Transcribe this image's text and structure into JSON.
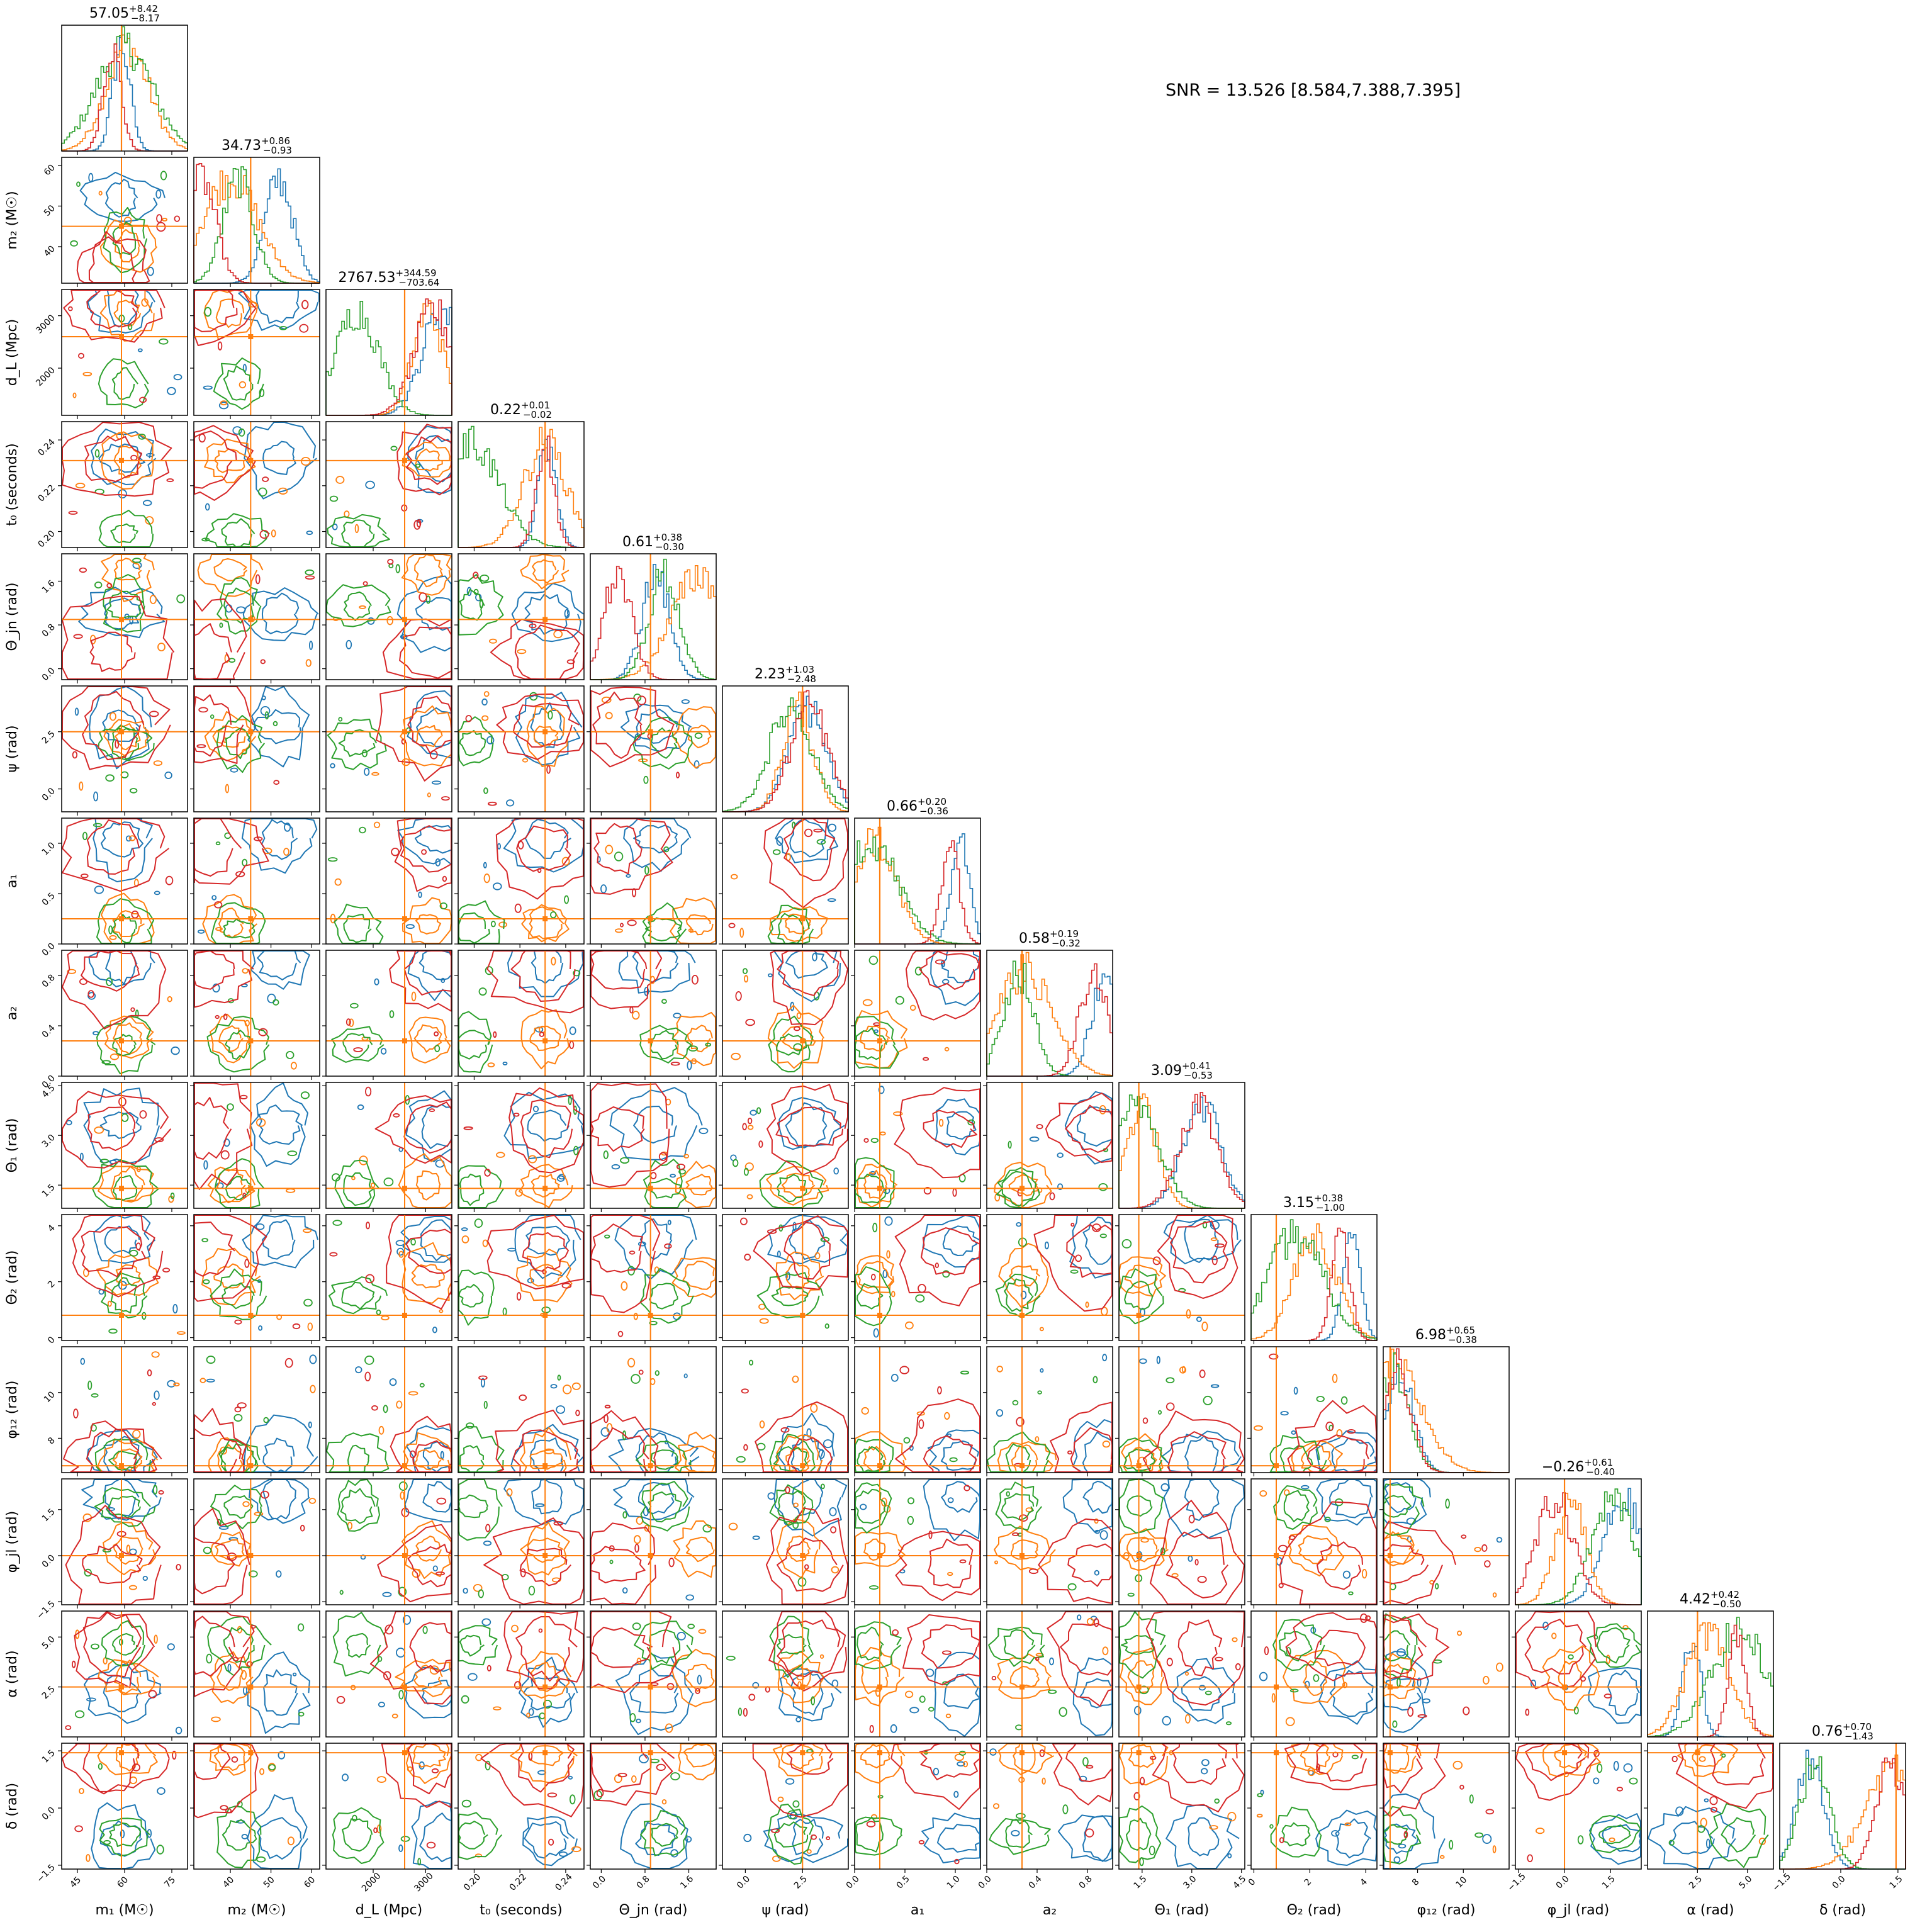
{
  "figure": {
    "snr_text": "SNR = 13.526 [8.584,7.388,7.395]"
  },
  "colors": {
    "blue": "#1f77b4",
    "orange": "#ff7f0e",
    "green": "#2ca02c",
    "red": "#d62728",
    "truth": "#ff7f0e"
  },
  "chart_data": {
    "type": "corner",
    "series_colors": [
      "#1f77b4",
      "#ff7f0e",
      "#2ca02c",
      "#d62728"
    ],
    "parameters": [
      {
        "label": "m₁ (M☉)",
        "title_main": "57.05",
        "title_plus": "+8.42",
        "title_minus": "−8.17",
        "range": [
          40,
          80
        ],
        "ticks": [
          45,
          60,
          75
        ],
        "tick_labels": [
          "45",
          "60",
          "75"
        ],
        "truth": 59
      },
      {
        "label": "m₂ (M☉)",
        "title_main": "34.73",
        "title_plus": "+0.86",
        "title_minus": "−0.93",
        "range": [
          31,
          62
        ],
        "ticks": [
          40,
          50,
          60
        ],
        "tick_labels": [
          "40",
          "50",
          "60"
        ],
        "truth": 45
      },
      {
        "label": "d_L (Mpc)",
        "title_main": "2767.53",
        "title_plus": "+344.59",
        "title_minus": "−703.64",
        "range": [
          1100,
          3500
        ],
        "ticks": [
          2000,
          3000
        ],
        "tick_labels": [
          "2000",
          "3000"
        ],
        "truth": 2600
      },
      {
        "label": "t₀ (seconds)",
        "title_main": "0.22",
        "title_plus": "+0.01",
        "title_minus": "−0.02",
        "range": [
          0.193,
          0.248
        ],
        "ticks": [
          0.2,
          0.22,
          0.24
        ],
        "tick_labels": [
          "0.20",
          "0.22",
          "0.24"
        ],
        "truth": 0.231
      },
      {
        "label": "Θ_jn (rad)",
        "title_main": "0.61",
        "title_plus": "+0.38",
        "title_minus": "−0.30",
        "range": [
          -0.2,
          2.1
        ],
        "ticks": [
          0.0,
          0.8,
          1.6
        ],
        "tick_labels": [
          "0.0",
          "0.8",
          "1.6"
        ],
        "truth": 0.9
      },
      {
        "label": "ψ (rad)",
        "title_main": "2.23",
        "title_plus": "+1.03",
        "title_minus": "−2.48",
        "range": [
          -1.0,
          4.5
        ],
        "ticks": [
          0.0,
          2.5
        ],
        "tick_labels": [
          "0.0",
          "2.5"
        ],
        "truth": 2.5
      },
      {
        "label": "a₁",
        "title_main": "0.66",
        "title_plus": "+0.20",
        "title_minus": "−0.36",
        "range": [
          0,
          1.25
        ],
        "ticks": [
          0.0,
          0.5,
          1.0
        ],
        "tick_labels": [
          "0.0",
          "0.5",
          "1.0"
        ],
        "truth": 0.25
      },
      {
        "label": "a₂",
        "title_main": "0.58",
        "title_plus": "+0.19",
        "title_minus": "−0.32",
        "range": [
          0,
          1.0
        ],
        "ticks": [
          0.0,
          0.4,
          0.8
        ],
        "tick_labels": [
          "0.0",
          "0.4",
          "0.8"
        ],
        "truth": 0.28
      },
      {
        "label": "Θ₁ (rad)",
        "title_main": "3.09",
        "title_plus": "+0.41",
        "title_minus": "−0.53",
        "range": [
          0.8,
          4.6
        ],
        "ticks": [
          1.5,
          3.0,
          4.5
        ],
        "tick_labels": [
          "1.5",
          "3.0",
          "4.5"
        ],
        "truth": 1.4
      },
      {
        "label": "Θ₂ (rad)",
        "title_main": "3.15",
        "title_plus": "+0.38",
        "title_minus": "−1.00",
        "range": [
          -0.1,
          4.4
        ],
        "ticks": [
          0,
          2,
          4
        ],
        "tick_labels": [
          "0",
          "2",
          "4"
        ],
        "truth": 0.8
      },
      {
        "label": "φ₁₂ (rad)",
        "title_main": "6.98",
        "title_plus": "+0.65",
        "title_minus": "−0.38",
        "range": [
          6.5,
          12
        ],
        "ticks": [
          8,
          10
        ],
        "tick_labels": [
          "8",
          "10"
        ],
        "truth": 6.8
      },
      {
        "label": "φ_jl (rad)",
        "title_main": "−0.26",
        "title_plus": "+0.61",
        "title_minus": "−0.40",
        "range": [
          -1.6,
          2.5
        ],
        "ticks": [
          -1.5,
          0.0,
          1.5
        ],
        "tick_labels": [
          "−1.5",
          "0.0",
          "1.5"
        ],
        "truth": 0.0
      },
      {
        "label": "α (rad)",
        "title_main": "4.42",
        "title_plus": "+0.42",
        "title_minus": "−0.50",
        "range": [
          0,
          6.3
        ],
        "ticks": [
          2.5,
          5.0
        ],
        "tick_labels": [
          "2.5",
          "5.0"
        ],
        "truth": 2.5
      },
      {
        "label": "δ (rad)",
        "title_main": "0.76",
        "title_plus": "+0.70",
        "title_minus": "−1.43",
        "range": [
          -1.6,
          1.7
        ],
        "ticks": [
          -1.5,
          0.0,
          1.5
        ],
        "tick_labels": [
          "−1.5",
          "0.0",
          "1.5"
        ],
        "truth": 1.45
      }
    ],
    "y_tick_labels_by_row": [
      null,
      [
        "40",
        "50",
        "60"
      ],
      [
        "2000",
        "3000"
      ],
      [
        "0.20",
        "0.22",
        "0.24"
      ],
      [
        "0.0",
        "0.8",
        "1.6"
      ],
      [
        "0.0",
        "2.5"
      ],
      [
        "0.0",
        "0.5",
        "1.0"
      ],
      [
        "0.0",
        "0.4",
        "0.8"
      ],
      [
        "1.5",
        "3.0",
        "4.5"
      ],
      [
        "0",
        "2",
        "4"
      ],
      [
        "8",
        "10"
      ],
      [
        "−1.5",
        "0.0",
        "1.5"
      ],
      [
        "2.5",
        "5.0"
      ],
      [
        "−1.5",
        "0.0",
        "1.5"
      ]
    ],
    "diagonal_peaks": [
      [
        59,
        61,
        60,
        56
      ],
      [
        52,
        40,
        42,
        33
      ],
      [
        3300,
        3050,
        1700,
        3150
      ],
      [
        0.232,
        0.231,
        0.199,
        0.231
      ],
      [
        1.0,
        1.8,
        1.15,
        0.3
      ],
      [
        2.7,
        2.3,
        2.0,
        2.8
      ],
      [
        1.05,
        0.2,
        0.15,
        0.95
      ],
      [
        0.95,
        0.3,
        0.25,
        0.85
      ],
      [
        3.3,
        1.5,
        1.4,
        3.2
      ],
      [
        3.5,
        2.2,
        1.5,
        3.1
      ],
      [
        7.2,
        7.0,
        7.0,
        7.1
      ],
      [
        1.9,
        0.2,
        1.6,
        -0.3
      ],
      [
        2.2,
        3.0,
        4.6,
        4.5
      ],
      [
        -0.8,
        1.4,
        -0.7,
        1.3
      ]
    ]
  }
}
